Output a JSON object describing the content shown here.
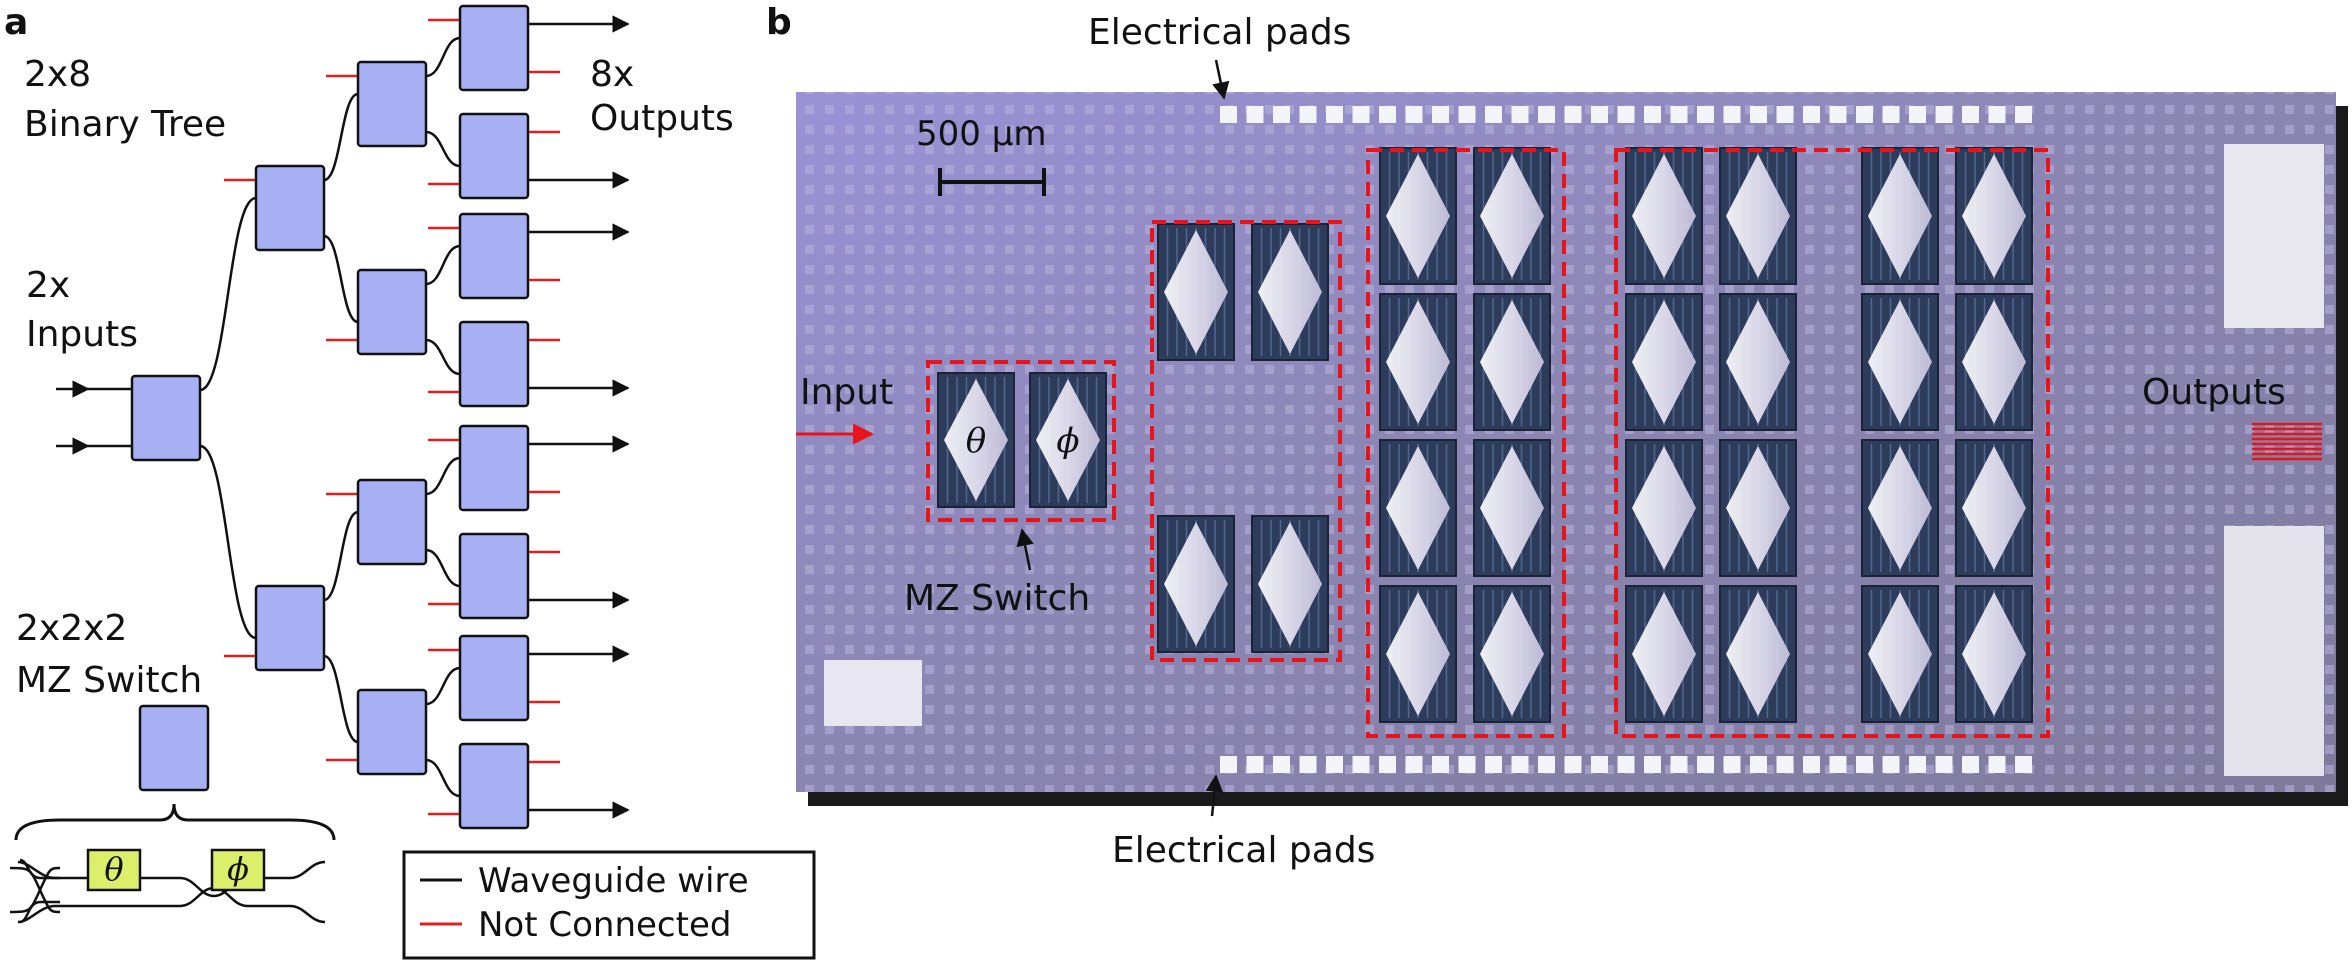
{
  "panel_a": {
    "label": "a",
    "title_line1": "2x8",
    "title_line2": "Binary Tree",
    "inputs_line1": "2x",
    "inputs_line2": "Inputs",
    "outputs_line1": "8x",
    "outputs_line2": "Outputs",
    "switch_line1": "2x2x2",
    "switch_line2": "MZ Switch",
    "theta": "θ",
    "phi": "ϕ",
    "legend": {
      "items": [
        {
          "label": "Waveguide wire",
          "color": "#111111"
        },
        {
          "label": "Not Connected",
          "color": "#e02020"
        }
      ]
    }
  },
  "panel_b": {
    "label": "b",
    "pads_top_label": "Electrical pads",
    "pads_bottom_label": "Electrical pads",
    "scale_label": "500 μm",
    "input_label": "Input",
    "outputs_label": "Outputs",
    "switch_label": "MZ Switch",
    "theta": "θ",
    "phi": "ϕ"
  },
  "colors": {
    "switch_fill": "#a8b0f4",
    "phase_fill": "#dcef6a",
    "not_connected": "#e02020",
    "highlight": "#e8141c",
    "chip": "#8e8ab8"
  }
}
